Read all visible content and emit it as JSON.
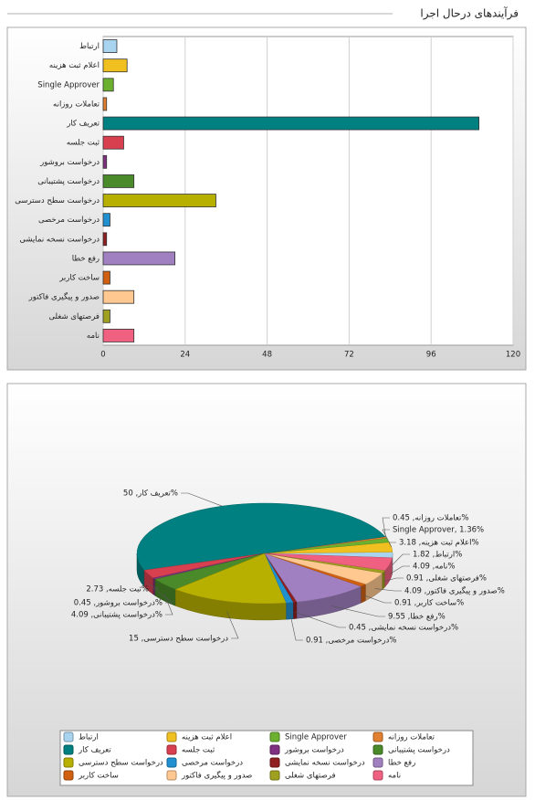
{
  "title": "فرآیندهای درحال اجرا",
  "chart_data": [
    {
      "type": "bar",
      "categories": [
        "ارتباط",
        "اعلام ثبت هزینه",
        "Single Approver",
        "تعاملات روزانه",
        "تعریف کار",
        "ثبت جلسه",
        "درخواست بروشور",
        "درخواست پشتیبانی",
        "درخواست سطح دسترسی",
        "درخواست مرخصی",
        "درخواست نسخه نمایشی",
        "رفع خطا",
        "ساخت کاربر",
        "صدور و پیگیری فاکتور",
        "فرصتهای شغلی",
        "نامه"
      ],
      "values": [
        4,
        7,
        3,
        1,
        110,
        6,
        1,
        9,
        33,
        2,
        1,
        21,
        2,
        9,
        2,
        9
      ],
      "colors": [
        "#a8d4f0",
        "#f0c020",
        "#6cb030",
        "#e08030",
        "#008080",
        "#d84050",
        "#803080",
        "#4a8a2a",
        "#b8b000",
        "#2090d0",
        "#902020",
        "#a080c0",
        "#d06010",
        "#ffc890",
        "#a0a020",
        "#f06080"
      ],
      "xlim": [
        0,
        120
      ],
      "xticks": [
        0,
        24,
        48,
        72,
        96,
        120
      ],
      "grid": true
    },
    {
      "type": "pie",
      "categories": [
        "ارتباط",
        "اعلام ثبت هزینه",
        "Single Approver",
        "تعاملات روزانه",
        "تعریف کار",
        "ثبت جلسه",
        "درخواست بروشور",
        "درخواست پشتیبانی",
        "درخواست سطح دسترسی",
        "درخواست مرخصی",
        "درخواست نسخه نمایشی",
        "رفع خطا",
        "ساخت کاربر",
        "صدور و پیگیری فاکتور",
        "فرصتهای شغلی",
        "نامه"
      ],
      "values": [
        1.82,
        3.18,
        1.36,
        0.45,
        50,
        2.73,
        0.45,
        4.09,
        15,
        0.91,
        0.45,
        9.55,
        0.91,
        4.09,
        0.91,
        4.09
      ],
      "value_labels": [
        "ارتباط, 1.82%",
        "اعلام ثبت هزینه, 3.18%",
        "Single Approver, 1.36%",
        "تعاملات روزانه, 0.45%",
        "تعریف کار, 50%",
        "ثبت جلسه, 2.73%",
        "درخواست بروشور, 0.45%",
        "درخواست پشتیبانی, 4.09%",
        "درخواست سطح دسترسی, 15",
        "درخواست مرخصی, 0.91%",
        "درخواست نسخه نمایشی, 0.45%",
        "رفع خطا, 9.55%",
        "ساخت کاربر, 0.91%",
        "صدور و پیگیری فاکتور, 4.09%",
        "فرصتهای شغلی, 0.91%",
        "نامه, 4.09%"
      ],
      "colors": [
        "#a8d4f0",
        "#f0c020",
        "#6cb030",
        "#e08030",
        "#008080",
        "#d84050",
        "#803080",
        "#4a8a2a",
        "#b8b000",
        "#2090d0",
        "#902020",
        "#a080c0",
        "#d06010",
        "#ffc890",
        "#a0a020",
        "#f06080"
      ],
      "legend": "bottom"
    }
  ]
}
